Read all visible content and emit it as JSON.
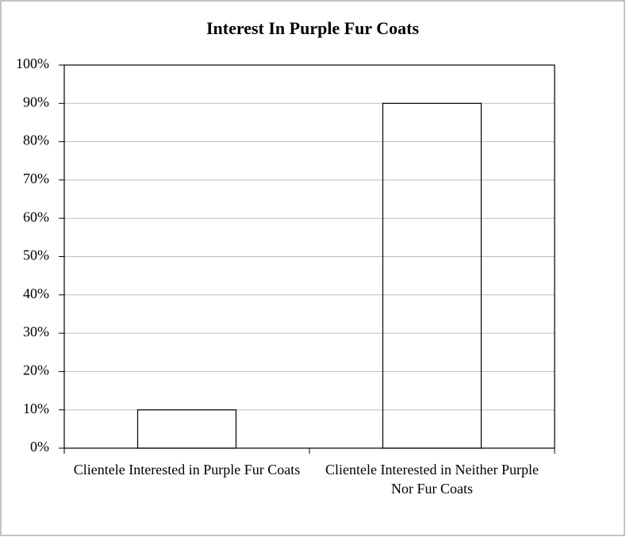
{
  "chart_data": {
    "type": "bar",
    "title": "Interest In Purple Fur Coats",
    "categories": [
      "Clientele Interested in Purple Fur Coats",
      "Clientele Interested in Neither Purple Nor Fur Coats"
    ],
    "values": [
      10,
      90
    ],
    "ylim": [
      0,
      100
    ],
    "yticks": [
      {
        "value": 0,
        "label": "0%"
      },
      {
        "value": 10,
        "label": "10%"
      },
      {
        "value": 20,
        "label": "20%"
      },
      {
        "value": 30,
        "label": "30%"
      },
      {
        "value": 40,
        "label": "40%"
      },
      {
        "value": 50,
        "label": "50%"
      },
      {
        "value": 60,
        "label": "60%"
      },
      {
        "value": 70,
        "label": "70%"
      },
      {
        "value": 80,
        "label": "80%"
      },
      {
        "value": 90,
        "label": "90%"
      },
      {
        "value": 100,
        "label": "100%"
      }
    ],
    "grid": true
  }
}
